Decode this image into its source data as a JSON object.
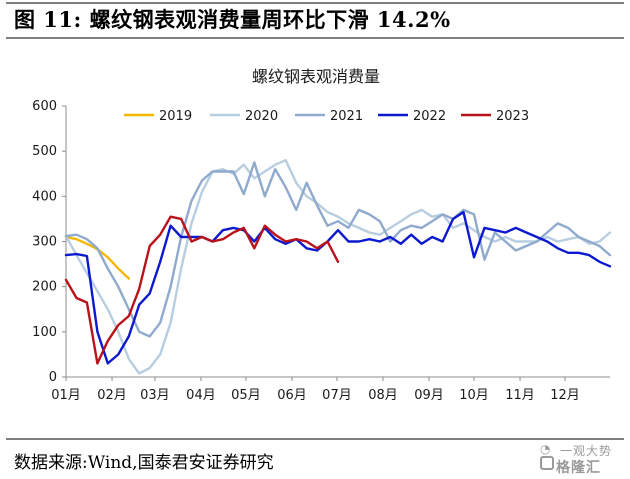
{
  "header": {
    "figure_label": "图 11:",
    "title_text": "螺纹钢表观消费量周环比下滑 14.2%"
  },
  "footer": {
    "source": "数据来源:Wind,国泰君安证券研究"
  },
  "watermark": {
    "line1": "一观大势",
    "line2": "格隆汇",
    "logo_icon": "wechat-icon"
  },
  "chart_data": {
    "type": "line",
    "title": "螺纹钢表观消费量",
    "xlabel": "",
    "ylabel": "",
    "ylim": [
      0,
      600
    ],
    "yticks": [
      0,
      100,
      200,
      300,
      400,
      500,
      600
    ],
    "xlim": [
      1,
      53
    ],
    "xticks": [
      {
        "label": "01月",
        "week": 1
      },
      {
        "label": "02月",
        "week": 5.4
      },
      {
        "label": "03月",
        "week": 9.5
      },
      {
        "label": "04月",
        "week": 13.9
      },
      {
        "label": "05月",
        "week": 18.2
      },
      {
        "label": "06月",
        "week": 22.6
      },
      {
        "label": "07月",
        "week": 26.9
      },
      {
        "label": "08月",
        "week": 31.3
      },
      {
        "label": "09月",
        "week": 35.7
      },
      {
        "label": "10月",
        "week": 40
      },
      {
        "label": "11月",
        "week": 44.4
      },
      {
        "label": "12月",
        "week": 48.7
      }
    ],
    "grid": false,
    "legend_position": "top",
    "series": [
      {
        "name": "2019",
        "color": "#f5b800",
        "points": [
          [
            1,
            310
          ],
          [
            2,
            305
          ],
          [
            3,
            295
          ],
          [
            4,
            283
          ],
          [
            5,
            265
          ],
          [
            6,
            240
          ],
          [
            7,
            218
          ]
        ]
      },
      {
        "name": "2020",
        "color": "#b7cde0",
        "points": [
          [
            1,
            312
          ],
          [
            2,
            270
          ],
          [
            3,
            230
          ],
          [
            4,
            190
          ],
          [
            5,
            150
          ],
          [
            6,
            100
          ],
          [
            7,
            40
          ],
          [
            8,
            8
          ],
          [
            9,
            20
          ],
          [
            10,
            50
          ],
          [
            11,
            120
          ],
          [
            12,
            240
          ],
          [
            13,
            340
          ],
          [
            14,
            410
          ],
          [
            15,
            455
          ],
          [
            16,
            460
          ],
          [
            17,
            450
          ],
          [
            18,
            470
          ],
          [
            19,
            440
          ],
          [
            20,
            455
          ],
          [
            21,
            470
          ],
          [
            22,
            480
          ],
          [
            23,
            430
          ],
          [
            24,
            400
          ],
          [
            25,
            385
          ],
          [
            26,
            365
          ],
          [
            27,
            355
          ],
          [
            28,
            340
          ],
          [
            29,
            330
          ],
          [
            30,
            320
          ],
          [
            31,
            315
          ],
          [
            32,
            330
          ],
          [
            33,
            345
          ],
          [
            34,
            360
          ],
          [
            35,
            370
          ],
          [
            36,
            355
          ],
          [
            37,
            360
          ],
          [
            38,
            330
          ],
          [
            39,
            340
          ],
          [
            40,
            325
          ],
          [
            41,
            310
          ],
          [
            42,
            300
          ],
          [
            43,
            310
          ],
          [
            44,
            300
          ],
          [
            45,
            300
          ],
          [
            46,
            300
          ],
          [
            47,
            310
          ],
          [
            48,
            300
          ],
          [
            49,
            305
          ],
          [
            50,
            310
          ],
          [
            51,
            295
          ],
          [
            52,
            300
          ],
          [
            53,
            320
          ]
        ]
      },
      {
        "name": "2021",
        "color": "#8faacd",
        "points": [
          [
            1,
            312
          ],
          [
            2,
            315
          ],
          [
            3,
            305
          ],
          [
            4,
            285
          ],
          [
            5,
            240
          ],
          [
            6,
            200
          ],
          [
            7,
            150
          ],
          [
            8,
            100
          ],
          [
            9,
            90
          ],
          [
            10,
            120
          ],
          [
            11,
            200
          ],
          [
            12,
            310
          ],
          [
            13,
            390
          ],
          [
            14,
            435
          ],
          [
            15,
            455
          ],
          [
            16,
            455
          ],
          [
            17,
            455
          ],
          [
            18,
            405
          ],
          [
            19,
            475
          ],
          [
            20,
            400
          ],
          [
            21,
            460
          ],
          [
            22,
            420
          ],
          [
            23,
            370
          ],
          [
            24,
            430
          ],
          [
            25,
            380
          ],
          [
            26,
            335
          ],
          [
            27,
            345
          ],
          [
            28,
            330
          ],
          [
            29,
            370
          ],
          [
            30,
            360
          ],
          [
            31,
            345
          ],
          [
            32,
            300
          ],
          [
            33,
            325
          ],
          [
            34,
            335
          ],
          [
            35,
            330
          ],
          [
            36,
            345
          ],
          [
            37,
            360
          ],
          [
            38,
            350
          ],
          [
            39,
            370
          ],
          [
            40,
            360
          ],
          [
            41,
            260
          ],
          [
            42,
            320
          ],
          [
            43,
            300
          ],
          [
            44,
            280
          ],
          [
            45,
            290
          ],
          [
            46,
            300
          ],
          [
            47,
            320
          ],
          [
            48,
            340
          ],
          [
            49,
            330
          ],
          [
            50,
            310
          ],
          [
            51,
            300
          ],
          [
            52,
            290
          ],
          [
            53,
            270
          ]
        ]
      },
      {
        "name": "2022",
        "color": "#0c19cf",
        "points": [
          [
            1,
            270
          ],
          [
            2,
            272
          ],
          [
            3,
            268
          ],
          [
            4,
            100
          ],
          [
            5,
            30
          ],
          [
            6,
            50
          ],
          [
            7,
            90
          ],
          [
            8,
            160
          ],
          [
            9,
            185
          ],
          [
            10,
            255
          ],
          [
            11,
            335
          ],
          [
            12,
            310
          ],
          [
            13,
            310
          ],
          [
            14,
            310
          ],
          [
            15,
            300
          ],
          [
            16,
            325
          ],
          [
            17,
            330
          ],
          [
            18,
            325
          ],
          [
            19,
            300
          ],
          [
            20,
            330
          ],
          [
            21,
            305
          ],
          [
            22,
            295
          ],
          [
            23,
            305
          ],
          [
            24,
            285
          ],
          [
            25,
            280
          ],
          [
            26,
            300
          ],
          [
            27,
            325
          ],
          [
            28,
            300
          ],
          [
            29,
            300
          ],
          [
            30,
            305
          ],
          [
            31,
            300
          ],
          [
            32,
            310
          ],
          [
            33,
            295
          ],
          [
            34,
            315
          ],
          [
            35,
            295
          ],
          [
            36,
            310
          ],
          [
            37,
            300
          ],
          [
            38,
            350
          ],
          [
            39,
            365
          ],
          [
            40,
            265
          ],
          [
            41,
            330
          ],
          [
            42,
            325
          ],
          [
            43,
            320
          ],
          [
            44,
            330
          ],
          [
            45,
            320
          ],
          [
            46,
            310
          ],
          [
            47,
            300
          ],
          [
            48,
            285
          ],
          [
            49,
            275
          ],
          [
            50,
            275
          ],
          [
            51,
            270
          ],
          [
            52,
            255
          ],
          [
            53,
            245
          ]
        ]
      },
      {
        "name": "2023",
        "color": "#b9121b",
        "points": [
          [
            1,
            215
          ],
          [
            2,
            175
          ],
          [
            3,
            165
          ],
          [
            4,
            30
          ],
          [
            5,
            80
          ],
          [
            6,
            115
          ],
          [
            7,
            135
          ],
          [
            8,
            195
          ],
          [
            9,
            290
          ],
          [
            10,
            315
          ],
          [
            11,
            355
          ],
          [
            12,
            350
          ],
          [
            13,
            300
          ],
          [
            14,
            310
          ],
          [
            15,
            300
          ],
          [
            16,
            305
          ],
          [
            17,
            320
          ],
          [
            18,
            330
          ],
          [
            19,
            285
          ],
          [
            20,
            335
          ],
          [
            21,
            315
          ],
          [
            22,
            300
          ],
          [
            23,
            305
          ],
          [
            24,
            300
          ],
          [
            25,
            285
          ],
          [
            26,
            300
          ],
          [
            27,
            255
          ]
        ]
      }
    ]
  }
}
